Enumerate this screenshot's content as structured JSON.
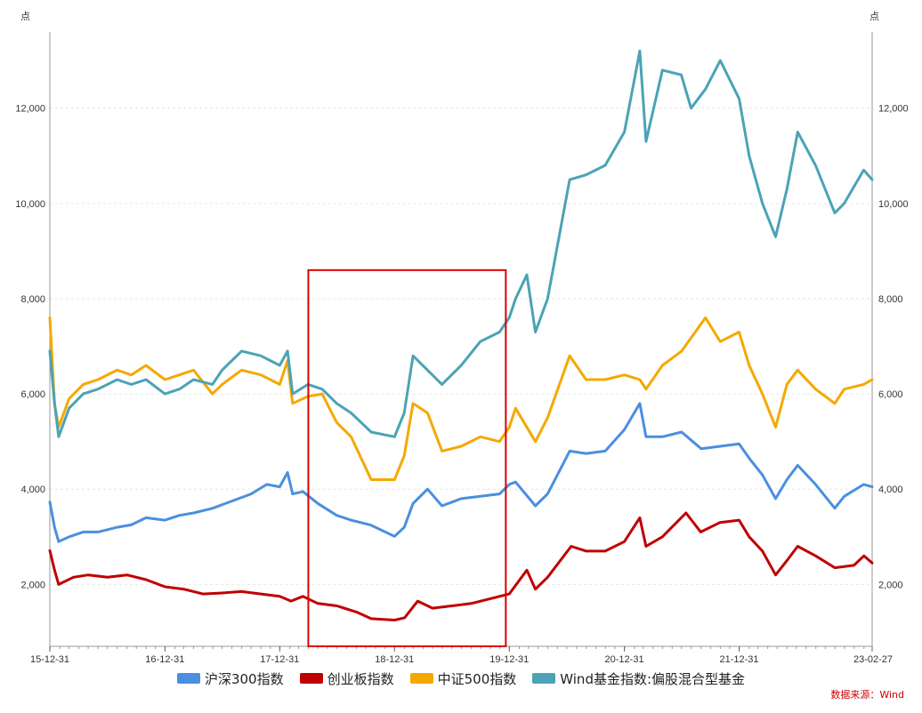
{
  "chart_data": {
    "type": "line",
    "left_unit": "点",
    "right_unit": "点",
    "ylim": [
      700,
      13600
    ],
    "y_ticks": [
      2000,
      4000,
      6000,
      8000,
      10000,
      12000
    ],
    "y_tick_labels": [
      "2,000",
      "4,000",
      "6,000",
      "8,000",
      "10,000",
      "12,000"
    ],
    "x_start": "2015-12-31",
    "x_end": "2023-02-27",
    "x_ticks": [
      {
        "date": "2015-12-31",
        "label": "15-12-31"
      },
      {
        "date": "2016-12-31",
        "label": "16-12-31"
      },
      {
        "date": "2017-12-31",
        "label": "17-12-31"
      },
      {
        "date": "2018-12-31",
        "label": "18-12-31"
      },
      {
        "date": "2019-12-31",
        "label": "19-12-31"
      },
      {
        "date": "2020-12-31",
        "label": "20-12-31"
      },
      {
        "date": "2021-12-31",
        "label": "21-12-31"
      },
      {
        "date": "2023-02-27",
        "label": "23-02-27"
      }
    ],
    "grid": true,
    "legend_position": "bottom",
    "highlight": {
      "x_start": "2018-04-01",
      "x_end": "2019-12-20",
      "y_min": 700,
      "y_max": 8600,
      "color": "#dd0000"
    },
    "source_note": "数据来源：Wind",
    "series": [
      {
        "name": "沪深300指数",
        "color": "#4a8fe0",
        "x": [
          "2015-12-31",
          "2016-01-15",
          "2016-01-28",
          "2016-03-01",
          "2016-04-15",
          "2016-06-01",
          "2016-08-01",
          "2016-09-15",
          "2016-11-01",
          "2016-12-31",
          "2017-02-15",
          "2017-04-01",
          "2017-06-01",
          "2017-08-01",
          "2017-10-01",
          "2017-11-20",
          "2017-12-31",
          "2018-01-25",
          "2018-02-10",
          "2018-03-15",
          "2018-05-01",
          "2018-06-30",
          "2018-08-15",
          "2018-10-15",
          "2018-12-31",
          "2019-01-31",
          "2019-02-28",
          "2019-04-15",
          "2019-05-31",
          "2019-07-31",
          "2019-09-30",
          "2019-11-30",
          "2019-12-31",
          "2020-01-20",
          "2020-03-23",
          "2020-05-01",
          "2020-07-10",
          "2020-08-31",
          "2020-10-31",
          "2020-12-31",
          "2021-02-18",
          "2021-03-10",
          "2021-05-01",
          "2021-07-01",
          "2021-09-01",
          "2021-11-01",
          "2021-12-31",
          "2022-02-01",
          "2022-03-15",
          "2022-04-26",
          "2022-06-01",
          "2022-07-05",
          "2022-08-31",
          "2022-10-31",
          "2022-11-30",
          "2023-01-31",
          "2023-02-27"
        ],
        "y": [
          3730,
          3200,
          2900,
          3000,
          3100,
          3100,
          3200,
          3250,
          3400,
          3350,
          3450,
          3500,
          3600,
          3750,
          3900,
          4100,
          4050,
          4350,
          3900,
          3950,
          3700,
          3450,
          3350,
          3250,
          3010,
          3200,
          3700,
          4000,
          3650,
          3800,
          3850,
          3900,
          4100,
          4150,
          3650,
          3900,
          4800,
          4750,
          4800,
          5250,
          5800,
          5100,
          5100,
          5200,
          4850,
          4900,
          4950,
          4650,
          4300,
          3800,
          4200,
          4500,
          4100,
          3600,
          3850,
          4100,
          4050
        ]
      },
      {
        "name": "创业板指数",
        "color": "#c00000",
        "x": [
          "2015-12-31",
          "2016-01-15",
          "2016-01-28",
          "2016-03-15",
          "2016-05-01",
          "2016-07-01",
          "2016-09-01",
          "2016-11-01",
          "2016-12-31",
          "2017-03-01",
          "2017-05-01",
          "2017-07-01",
          "2017-09-01",
          "2017-11-01",
          "2017-12-31",
          "2018-02-05",
          "2018-03-15",
          "2018-05-01",
          "2018-07-01",
          "2018-09-01",
          "2018-10-18",
          "2018-12-31",
          "2019-02-01",
          "2019-03-15",
          "2019-05-01",
          "2019-07-01",
          "2019-09-01",
          "2019-11-01",
          "2019-12-31",
          "2020-02-25",
          "2020-03-23",
          "2020-05-01",
          "2020-07-15",
          "2020-09-01",
          "2020-10-31",
          "2020-12-31",
          "2021-02-18",
          "2021-03-10",
          "2021-05-01",
          "2021-07-15",
          "2021-08-31",
          "2021-10-31",
          "2021-12-31",
          "2022-02-01",
          "2022-03-15",
          "2022-04-26",
          "2022-06-01",
          "2022-07-05",
          "2022-08-31",
          "2022-10-31",
          "2022-12-31",
          "2023-02-01",
          "2023-02-27"
        ],
        "y": [
          2710,
          2300,
          2000,
          2150,
          2200,
          2150,
          2200,
          2100,
          1950,
          1900,
          1800,
          1820,
          1850,
          1800,
          1750,
          1650,
          1750,
          1600,
          1550,
          1420,
          1280,
          1250,
          1300,
          1650,
          1500,
          1550,
          1600,
          1700,
          1800,
          2300,
          1900,
          2150,
          2800,
          2700,
          2700,
          2900,
          3400,
          2800,
          3000,
          3500,
          3100,
          3300,
          3350,
          3000,
          2700,
          2200,
          2500,
          2800,
          2600,
          2350,
          2400,
          2600,
          2450
        ]
      },
      {
        "name": "中证500指数",
        "color": "#f5a800",
        "x": [
          "2015-12-31",
          "2016-01-15",
          "2016-01-28",
          "2016-03-01",
          "2016-04-15",
          "2016-06-01",
          "2016-08-01",
          "2016-09-15",
          "2016-11-01",
          "2016-12-31",
          "2017-02-15",
          "2017-04-01",
          "2017-05-31",
          "2017-07-01",
          "2017-09-01",
          "2017-11-01",
          "2017-12-31",
          "2018-01-25",
          "2018-02-10",
          "2018-03-31",
          "2018-05-15",
          "2018-06-30",
          "2018-08-15",
          "2018-10-18",
          "2018-12-31",
          "2019-01-31",
          "2019-02-28",
          "2019-04-15",
          "2019-05-31",
          "2019-07-31",
          "2019-09-30",
          "2019-11-30",
          "2019-12-31",
          "2020-01-20",
          "2020-03-23",
          "2020-05-01",
          "2020-07-10",
          "2020-08-31",
          "2020-10-31",
          "2020-12-31",
          "2021-02-18",
          "2021-03-10",
          "2021-05-01",
          "2021-07-01",
          "2021-09-15",
          "2021-11-01",
          "2021-12-31",
          "2022-02-01",
          "2022-03-15",
          "2022-04-26",
          "2022-06-01",
          "2022-07-05",
          "2022-08-31",
          "2022-10-31",
          "2022-11-30",
          "2023-01-31",
          "2023-02-27"
        ],
        "y": [
          7600,
          5800,
          5300,
          5900,
          6200,
          6300,
          6500,
          6400,
          6600,
          6300,
          6400,
          6500,
          6000,
          6200,
          6500,
          6400,
          6200,
          6700,
          5800,
          5950,
          6000,
          5400,
          5100,
          4200,
          4200,
          4700,
          5800,
          5600,
          4800,
          4900,
          5100,
          5000,
          5300,
          5700,
          5000,
          5500,
          6800,
          6300,
          6300,
          6400,
          6300,
          6100,
          6600,
          6900,
          7600,
          7100,
          7300,
          6600,
          6000,
          5300,
          6200,
          6500,
          6100,
          5800,
          6100,
          6200,
          6300
        ]
      },
      {
        "name": "Wind基金指数:偏股混合型基金",
        "color": "#4ba3b5",
        "x": [
          "2015-12-31",
          "2016-01-15",
          "2016-01-28",
          "2016-03-01",
          "2016-04-15",
          "2016-06-01",
          "2016-08-01",
          "2016-09-15",
          "2016-11-01",
          "2016-12-31",
          "2017-02-15",
          "2017-04-01",
          "2017-05-31",
          "2017-07-01",
          "2017-09-01",
          "2017-11-01",
          "2017-12-31",
          "2018-01-25",
          "2018-02-10",
          "2018-03-31",
          "2018-05-15",
          "2018-06-30",
          "2018-08-15",
          "2018-10-18",
          "2018-12-31",
          "2019-01-31",
          "2019-02-28",
          "2019-04-15",
          "2019-05-31",
          "2019-07-31",
          "2019-09-30",
          "2019-11-30",
          "2019-12-31",
          "2020-01-20",
          "2020-02-25",
          "2020-03-23",
          "2020-05-01",
          "2020-07-10",
          "2020-08-31",
          "2020-10-31",
          "2020-12-31",
          "2021-02-18",
          "2021-03-10",
          "2021-05-01",
          "2021-06-30",
          "2021-07-31",
          "2021-09-15",
          "2021-11-01",
          "2021-12-31",
          "2022-02-01",
          "2022-03-15",
          "2022-04-26",
          "2022-06-01",
          "2022-07-05",
          "2022-08-31",
          "2022-10-31",
          "2022-11-30",
          "2023-01-31",
          "2023-02-27"
        ],
        "y": [
          6900,
          5800,
          5100,
          5700,
          6000,
          6100,
          6300,
          6200,
          6300,
          6000,
          6100,
          6300,
          6200,
          6500,
          6900,
          6800,
          6600,
          6900,
          6000,
          6200,
          6100,
          5800,
          5600,
          5200,
          5100,
          5600,
          6800,
          6500,
          6200,
          6600,
          7100,
          7300,
          7600,
          8000,
          8500,
          7300,
          8000,
          10500,
          10600,
          10800,
          11500,
          13200,
          11300,
          12800,
          12700,
          12000,
          12400,
          13000,
          12200,
          11000,
          10000,
          9300,
          10300,
          11500,
          10800,
          9800,
          10000,
          10700,
          10500
        ]
      }
    ]
  }
}
